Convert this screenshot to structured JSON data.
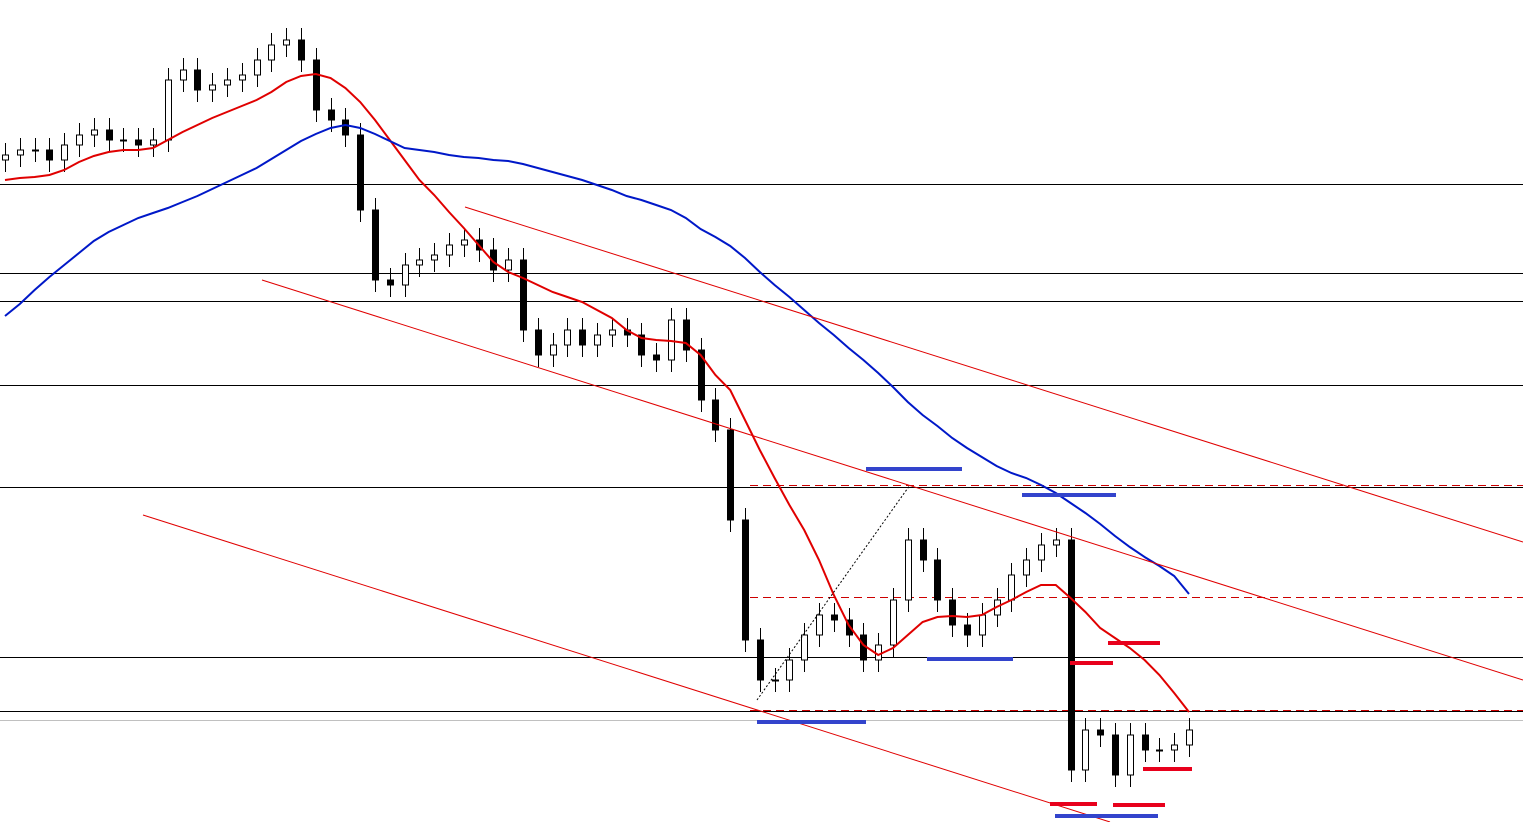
{
  "chart_data": {
    "type": "candlestick",
    "ylim": [
      0,
      822
    ],
    "bull_color": "#ffffff",
    "bear_color": "#000000",
    "open": [
      662,
      667,
      672,
      672,
      662,
      677,
      687,
      692,
      682,
      682,
      677,
      682,
      742,
      752,
      732,
      737,
      742,
      747,
      762,
      777,
      782,
      762,
      712,
      702,
      687,
      612,
      542,
      537,
      557,
      562,
      567,
      577,
      582,
      572,
      552,
      562,
      492,
      467,
      477,
      492,
      477,
      487,
      492,
      487,
      467,
      462,
      502,
      472,
      422,
      392,
      302,
      182,
      142,
      142,
      162,
      187,
      207,
      202,
      187,
      162,
      177,
      222,
      282,
      262,
      222,
      197,
      187,
      207,
      222,
      247,
      262,
      277,
      282,
      52,
      92,
      87,
      47,
      87,
      72,
      72,
      77
    ],
    "high": [
      679,
      684,
      684,
      684,
      689,
      699,
      704,
      704,
      694,
      694,
      694,
      754,
      764,
      764,
      749,
      754,
      759,
      774,
      789,
      794,
      794,
      774,
      724,
      714,
      699,
      624,
      554,
      569,
      574,
      579,
      589,
      594,
      594,
      584,
      574,
      574,
      504,
      489,
      504,
      504,
      499,
      504,
      504,
      499,
      479,
      514,
      514,
      484,
      434,
      404,
      314,
      194,
      154,
      174,
      199,
      219,
      219,
      214,
      199,
      189,
      234,
      294,
      294,
      274,
      234,
      209,
      219,
      234,
      259,
      274,
      289,
      294,
      294,
      104,
      104,
      99,
      99,
      99,
      84,
      89,
      104
    ],
    "low": [
      650,
      655,
      660,
      650,
      650,
      665,
      675,
      670,
      670,
      665,
      665,
      670,
      730,
      720,
      720,
      725,
      730,
      735,
      750,
      765,
      750,
      700,
      690,
      675,
      600,
      530,
      525,
      525,
      545,
      550,
      555,
      565,
      560,
      540,
      540,
      480,
      455,
      455,
      465,
      465,
      465,
      475,
      475,
      455,
      450,
      450,
      460,
      410,
      380,
      290,
      170,
      130,
      130,
      130,
      150,
      175,
      190,
      175,
      150,
      150,
      165,
      210,
      250,
      210,
      185,
      175,
      175,
      195,
      210,
      235,
      250,
      265,
      40,
      40,
      75,
      35,
      35,
      60,
      60,
      60,
      65
    ],
    "close": [
      667,
      672,
      672,
      662,
      677,
      687,
      692,
      682,
      682,
      677,
      682,
      742,
      752,
      732,
      737,
      742,
      747,
      762,
      777,
      782,
      762,
      712,
      702,
      687,
      612,
      542,
      537,
      557,
      562,
      567,
      577,
      582,
      572,
      552,
      562,
      492,
      467,
      477,
      492,
      477,
      487,
      492,
      487,
      467,
      462,
      502,
      472,
      422,
      392,
      302,
      182,
      142,
      142,
      162,
      187,
      207,
      202,
      187,
      162,
      177,
      222,
      282,
      262,
      222,
      197,
      187,
      207,
      222,
      247,
      262,
      277,
      282,
      52,
      92,
      87,
      47,
      87,
      72,
      72,
      77,
      92
    ],
    "series": [
      {
        "color": "#e00000",
        "values": [
          642,
          644,
          645,
          647,
          652,
          660,
          666,
          670,
          672,
          672,
          674,
          682,
          690,
          697,
          704,
          710,
          716,
          722,
          730,
          740,
          746,
          748,
          744,
          734,
          720,
          702,
          682,
          662,
          642,
          627,
          610,
          594,
          577,
          560,
          550,
          544,
          537,
          530,
          525,
          520,
          512,
          504,
          492,
          484,
          482,
          481,
          479,
          467,
          447,
          432,
          402,
          372,
          344,
          317,
          292,
          262,
          227,
          197,
          177,
          167,
          174,
          187,
          200,
          205,
          206,
          205,
          207,
          215,
          222,
          230,
          237,
          237,
          224,
          210,
          194,
          184,
          174,
          162,
          147,
          129,
          110
        ]
      },
      {
        "color": "#0018c8",
        "values": [
          506,
          518,
          532,
          545,
          557,
          569,
          581,
          590,
          597,
          604,
          609,
          614,
          620,
          626,
          633,
          640,
          647,
          654,
          663,
          672,
          681,
          688,
          694,
          697,
          694,
          688,
          681,
          674,
          672,
          670,
          667,
          665,
          664,
          662,
          661,
          658,
          654,
          650,
          646,
          642,
          637,
          632,
          626,
          622,
          617,
          612,
          604,
          593,
          585,
          576,
          564,
          550,
          537,
          525,
          512,
          499,
          487,
          474,
          462,
          449,
          435,
          420,
          407,
          396,
          384,
          374,
          365,
          356,
          349,
          344,
          337,
          329,
          319,
          309,
          298,
          286,
          275,
          265,
          256,
          246,
          228
        ]
      }
    ],
    "levels": [
      638,
      549,
      521,
      437,
      335,
      165,
      111
    ],
    "dashed_levels": [
      337,
      225,
      112
    ],
    "last_price": 102
  }
}
